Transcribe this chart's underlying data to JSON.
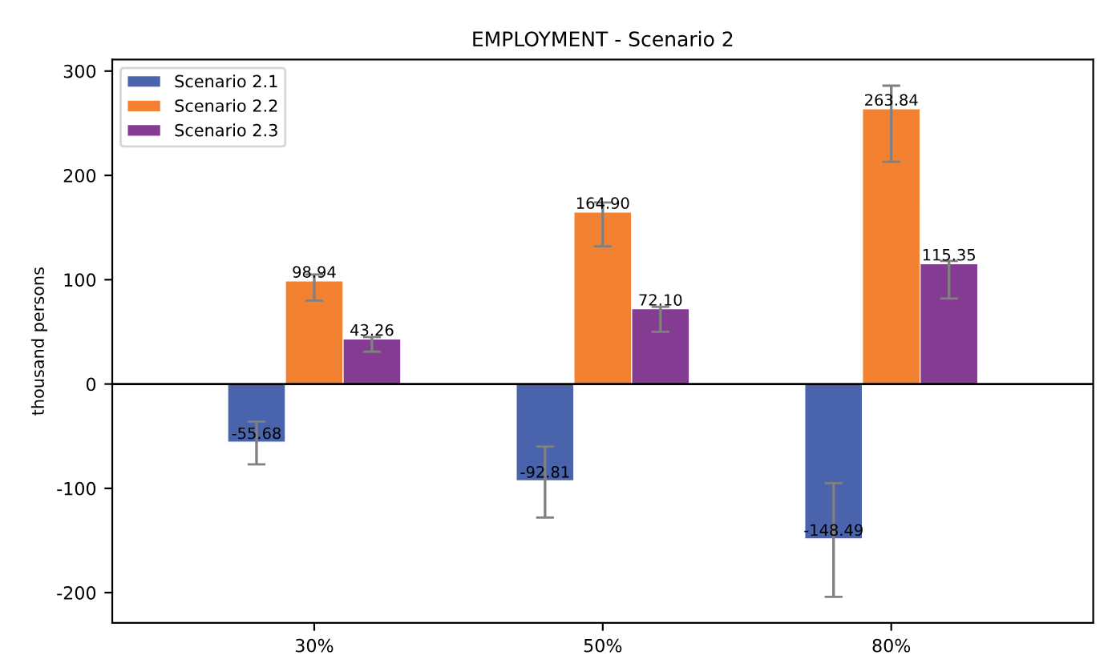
{
  "chart_data": {
    "type": "bar",
    "title": "EMPLOYMENT - Scenario 2",
    "ylabel": "thousand persons",
    "categories": [
      "30%",
      "50%",
      "80%"
    ],
    "series": [
      {
        "name": "Scenario 2.1",
        "color": "#4a63ad",
        "values": [
          -55.68,
          -92.81,
          -148.49
        ],
        "errors": [
          [
            -77,
            -36
          ],
          [
            -128,
            -60
          ],
          [
            -204,
            -95
          ]
        ],
        "value_labels": [
          "-55.68",
          "-92.81",
          "-148.49"
        ]
      },
      {
        "name": "Scenario 2.2",
        "color": "#f28131",
        "values": [
          98.94,
          164.9,
          263.84
        ],
        "errors": [
          [
            80,
            105
          ],
          [
            132,
            174
          ],
          [
            213,
            286
          ]
        ],
        "value_labels": [
          "98.94",
          "164.90",
          "263.84"
        ]
      },
      {
        "name": "Scenario 2.3",
        "color": "#843c93",
        "values": [
          43.26,
          72.1,
          115.35
        ],
        "errors": [
          [
            31,
            45
          ],
          [
            50,
            74
          ],
          [
            82,
            118
          ]
        ],
        "value_labels": [
          "43.26",
          "72.10",
          "115.35"
        ]
      }
    ],
    "ylim": [
      -229,
      311
    ],
    "yticks": [
      -200,
      -100,
      0,
      100,
      200,
      300
    ],
    "ref_lines": [
      {
        "axis": "y",
        "value": 0,
        "color": "#000000"
      }
    ],
    "grid": false,
    "legend": "top left"
  }
}
